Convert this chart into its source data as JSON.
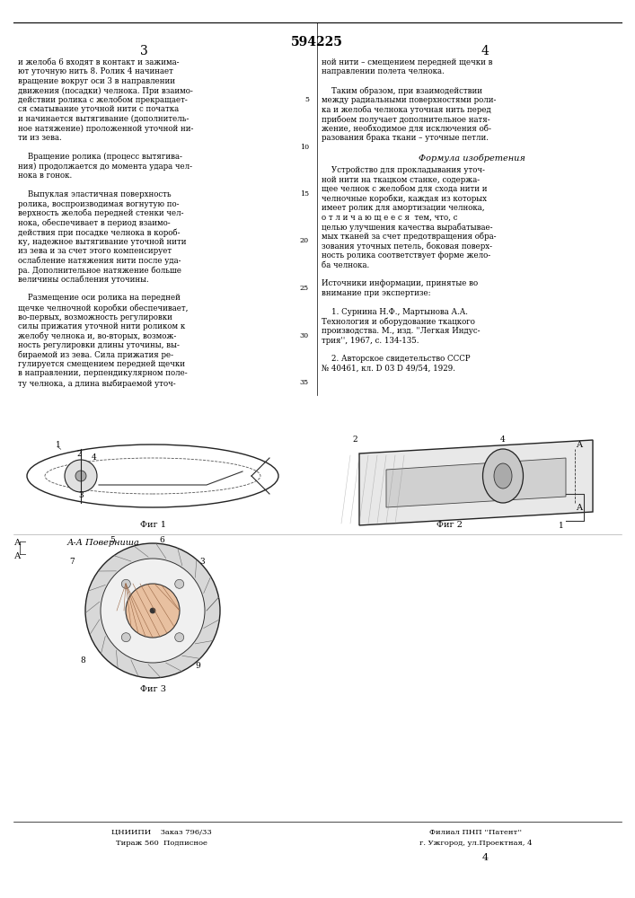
{
  "bg_color": "#f5f5f0",
  "page_color": "#ffffff",
  "patent_number": "594225",
  "page_left": "3",
  "page_right": "4",
  "top_line_color": "#000000",
  "text_color": "#000000",
  "left_column_lines": [
    "и желоба 6 входят в контакт и зажима-",
    "ют уточную нить 8. Ролик 4 начинает",
    "вращение вокруг оси 3 в направлении",
    "движения (посадки) челнока. При взаимо-",
    "действии ролика с желобом прекращает-",
    "ся сматывание уточной нити с початка",
    "и начинается вытягивание (дополнитель-",
    "ное натяжение) проложенной уточной ни-",
    "ти из зева.",
    "",
    "    Вращение ролика (процесс вытягива-",
    "ния) продолжается до момента удара чел-",
    "нока в гонок.",
    "",
    "    Выпуклая эластичная поверхность",
    "ролика, воспроизводимая вогнутую по-",
    "верхность желоба передней стенки чел-",
    "нока, обеспечивает в период взаимо-",
    "действия при посадке челнока в короб-",
    "ку, надежное вытягивание уточной нити",
    "из зева и за счет этого компенсирует",
    "ослабление натяжения нити после уда-",
    "ра. Дополнительное натяжение больше",
    "величины ослабления уточины.",
    "",
    "    Размещение оси ролика на передней",
    "щечке челночной коробки обеспечивает,",
    "во-первых, возможность регулировки",
    "силы прижатия уточной нити роликом к",
    "желобу челнока и, во-вторых, возмож-",
    "ность регулировки длины уточины, вы-",
    "бираемой из зева. Сила прижатия ре-",
    "гулируется смещением передней щечки",
    "в направлении, перпендикулярном поле-",
    "ту челнока, а длина выбираемой уточ-"
  ],
  "right_column_lines_top": [
    "ной нити – смещением передней щечки в",
    "направлении полета челнока.",
    "",
    "    Таким образом, при взаимодействии",
    "между радиальными поверхностями роли-",
    "ка и желоба челнока уточная нить перед",
    "прибоем получает дополнительное натя-",
    "жение, необходимое для исключения об-",
    "разования брака ткани – уточные петли."
  ],
  "formula_title": "Формула изобретения",
  "formula_text": [
    "    Устройство для прокладывания уточ-",
    "ной нити на ткацком станке, содержа-",
    "щее челнок с желобом для схода нити и",
    "челночные коробки, каждая из которых",
    "имеет ролик для амортизации челнока,",
    "о т л и ч а ю щ е е с я  тем, что, с",
    "целью улучшения качества вырабатывае-",
    "мых тканей за счет предотвращения обра-",
    "зования уточных петель, боковая поверх-",
    "ность ролика соответствует форме жело-",
    "ба челнока."
  ],
  "sources_title": "Источники информации, принятые во",
  "sources_lines": [
    "внимание при экспертизе:",
    "",
    "    1. Сурнина Н.Ф., Мартынова А.А.",
    "Технология и оборудование ткацкого",
    "производства. М., изд. ''Легкая Индус-",
    "трия'', 1967, с. 134-135.",
    "",
    "    2. Авторское свидетельство СССР",
    "№ 40461, кл. D 03 D 49/54, 1929."
  ],
  "line_numbers": [
    "5",
    "10",
    "15",
    "20",
    "25",
    "30"
  ],
  "bottom_left_text": [
    "ЦНИИПИ    Заказ 796/33",
    "Тираж 560  Подписное"
  ],
  "bottom_right_text": [
    "Филиал ПНП ''Патент''",
    "г. Ужгород, ул.Проектная, 4"
  ],
  "fig1_label": "Фиг 1",
  "fig2_label": "Фиг 2",
  "fig3_label": "Фиг 3",
  "fig_aa_label": "А-А Поверниша"
}
